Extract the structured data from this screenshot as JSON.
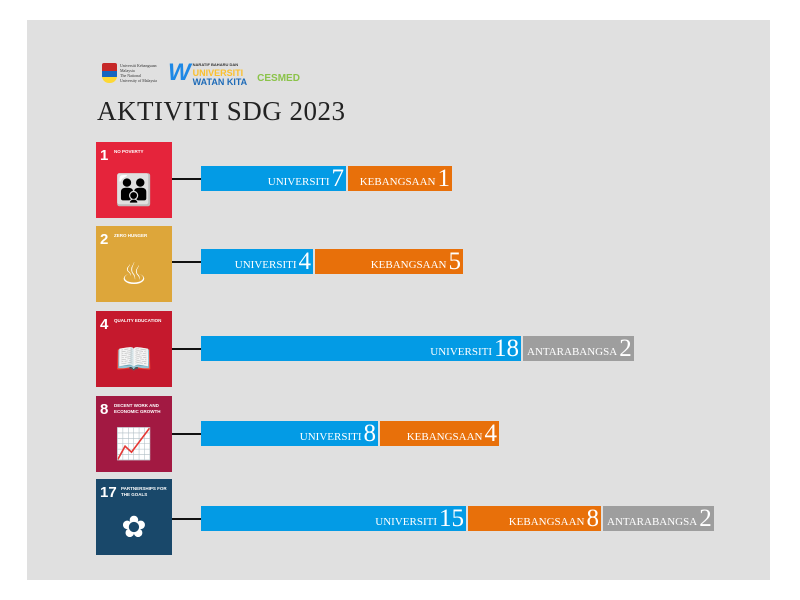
{
  "logos": {
    "ukm": "Universiti Kebangsaan Malaysia",
    "ukm_sub": "The National University of Malaysia",
    "uwk_tag": "NARATIF BAHARU DAN",
    "uwk_line1": "UNIVERSITI",
    "uwk_line2": "WATAN KITA",
    "cesmed": "CESMED"
  },
  "title": "AKTIVITI SDG 2023",
  "colors": {
    "universiti": "#039be5",
    "kebangsaan": "#e8700a",
    "antarabangsa": "#9e9e9e",
    "background": "#e0e0e0"
  },
  "chart_data": {
    "type": "bar",
    "orientation": "horizontal-stacked",
    "title": "AKTIVITI SDG 2023",
    "categories": [
      "1 NO POVERTY",
      "2 ZERO HUNGER",
      "4 QUALITY EDUCATION",
      "8 DECENT WORK AND ECONOMIC GROWTH",
      "17 PARTNERSHIPS FOR THE GOALS"
    ],
    "rows": [
      {
        "sdg_number": "1",
        "sdg_label": "NO POVERTY",
        "sdg_color": "#e5243b",
        "icon": "family-icon",
        "segments": [
          {
            "name": "UNIVERSITI",
            "value": 7,
            "key": "universiti"
          },
          {
            "name": "KEBANGSAAN",
            "value": 1,
            "key": "kebangsaan"
          }
        ]
      },
      {
        "sdg_number": "2",
        "sdg_label": "ZERO HUNGER",
        "sdg_color": "#dda63a",
        "icon": "soup-bowl-icon",
        "segments": [
          {
            "name": "UNIVERSITI",
            "value": 4,
            "key": "universiti"
          },
          {
            "name": "KEBANGSAAN",
            "value": 5,
            "key": "kebangsaan"
          }
        ]
      },
      {
        "sdg_number": "4",
        "sdg_label": "QUALITY EDUCATION",
        "sdg_color": "#c5192d",
        "icon": "book-pencil-icon",
        "segments": [
          {
            "name": "UNIVERSITI",
            "value": 18,
            "key": "universiti"
          },
          {
            "name": "ANTARABANGSA",
            "value": 2,
            "key": "antarabangsa"
          }
        ]
      },
      {
        "sdg_number": "8",
        "sdg_label": "DECENT WORK AND ECONOMIC GROWTH",
        "sdg_color": "#a21942",
        "icon": "growth-chart-icon",
        "segments": [
          {
            "name": "UNIVERSITI",
            "value": 8,
            "key": "universiti"
          },
          {
            "name": "KEBANGSAAN",
            "value": 4,
            "key": "kebangsaan"
          }
        ]
      },
      {
        "sdg_number": "17",
        "sdg_label": "PARTNERSHIPS FOR THE GOALS",
        "sdg_color": "#19486a",
        "icon": "flower-rings-icon",
        "segments": [
          {
            "name": "UNIVERSITI",
            "value": 15,
            "key": "universiti"
          },
          {
            "name": "KEBANGSAAN",
            "value": 8,
            "key": "kebangsaan"
          },
          {
            "name": "ANTARABANGSA",
            "value": 2,
            "key": "antarabangsa"
          }
        ]
      }
    ]
  }
}
